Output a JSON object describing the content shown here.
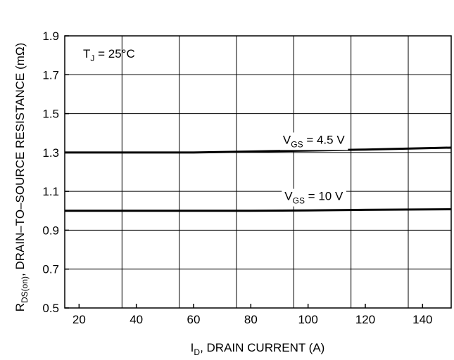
{
  "chart_data": {
    "type": "line",
    "xlabel": {
      "main": "I",
      "sub": "D",
      "rest": ", DRAIN CURRENT (A)"
    },
    "ylabel": {
      "main": "R",
      "sub": "DS(on)",
      "rest": ", DRAIN–TO–SOURCE RESISTANCE (mΩ)"
    },
    "xlim": [
      15,
      150
    ],
    "ylim": [
      0.5,
      1.9
    ],
    "x_ticks": [
      20,
      40,
      60,
      80,
      100,
      120,
      140
    ],
    "x_tick_labels": [
      "20",
      "40",
      "60",
      "80",
      "100",
      "120",
      "140"
    ],
    "y_ticks": [
      0.5,
      0.7,
      0.9,
      1.1,
      1.3,
      1.5,
      1.7,
      1.9
    ],
    "y_tick_labels": [
      "0.5",
      "0.7",
      "0.9",
      "1.1",
      "1.3",
      "1.5",
      "1.7",
      "1.9"
    ],
    "grid_x": [
      35,
      55,
      75,
      95,
      115,
      135
    ],
    "grid": true,
    "annotation": {
      "main": "T",
      "sub": "J",
      "rest": " = 25°C"
    },
    "series": [
      {
        "label": {
          "main": "V",
          "sub": "GS",
          "rest": " = 4.5 V"
        },
        "x": [
          15,
          40,
          60,
          80,
          100,
          120,
          150
        ],
        "y": [
          1.3,
          1.3,
          1.3,
          1.305,
          1.31,
          1.315,
          1.325
        ],
        "label_at": [
          102,
          1.345
        ]
      },
      {
        "label": {
          "main": "V",
          "sub": "GS",
          "rest": " = 10 V"
        },
        "x": [
          15,
          40,
          60,
          80,
          100,
          120,
          150
        ],
        "y": [
          1.0,
          1.0,
          1.0,
          1.0,
          1.002,
          1.005,
          1.008
        ],
        "label_at": [
          102,
          1.055
        ]
      }
    ]
  }
}
